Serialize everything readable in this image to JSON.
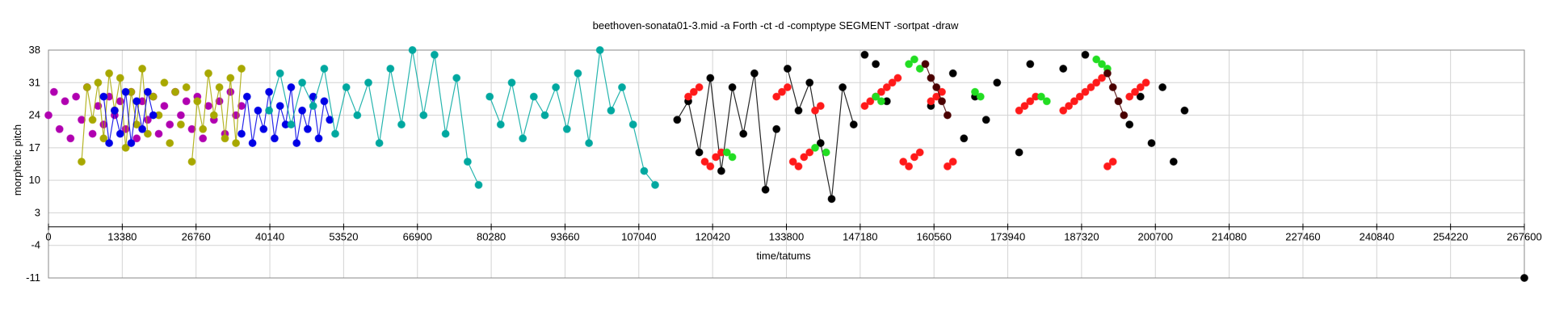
{
  "chart_data": {
    "type": "scatter",
    "title": "beethoven-sonata01-3.mid  -a Forth -ct -d -comptype SEGMENT -sortpat -draw",
    "xlabel": "time/tatums",
    "ylabel": "morphetic pitch",
    "xlim": [
      0,
      267600
    ],
    "ylim": [
      -11,
      38
    ],
    "x_ticks": [
      0,
      13380,
      26760,
      40140,
      53520,
      66900,
      80280,
      93660,
      107040,
      120420,
      133800,
      147180,
      160560,
      173940,
      187320,
      200700,
      214080,
      227460,
      240840,
      254220,
      267600
    ],
    "x_tick_labels": [
      "0",
      "13380",
      "26760",
      "40140",
      "53520",
      "66900",
      "80280",
      "93660",
      "107040",
      "120420",
      "133800",
      "147180",
      "160560",
      "173940",
      "187320",
      "200700",
      "214080",
      "227460",
      "240840",
      "254220",
      "267600"
    ],
    "y_ticks": [
      38,
      31,
      24,
      17,
      10,
      3,
      -4,
      -11
    ],
    "y_tick_labels": [
      "38",
      "31",
      "24",
      "17",
      "10",
      "3",
      "-4",
      "-11"
    ],
    "grid": true,
    "legend": "none",
    "colors": {
      "magenta": "#b000b0",
      "olive": "#a8a800",
      "blue": "#0000e6",
      "teal": "#00a8a0",
      "black": "#000000",
      "red": "#ff1a1a",
      "green": "#22dd22",
      "darkred": "#4a0000",
      "grid": "#d3d3d3"
    },
    "series": [
      {
        "color": "magenta",
        "x": [
          0,
          1000,
          2000,
          3000,
          4000,
          5000,
          6000,
          7000,
          8000,
          9000,
          10000,
          11000,
          12000,
          13000,
          14000,
          15000,
          16000,
          17000,
          18000,
          19000,
          20000,
          21000,
          22000,
          23000,
          24000,
          25000,
          26000,
          27000,
          28000,
          29000,
          30000,
          31000,
          32000,
          33000,
          34000,
          35000
        ],
        "y": [
          24,
          29,
          21,
          27,
          19,
          28,
          23,
          30,
          20,
          26,
          22,
          28,
          24,
          27,
          21,
          29,
          19,
          27,
          23,
          28,
          20,
          26,
          22,
          29,
          24,
          27,
          21,
          28,
          19,
          26,
          23,
          27,
          20,
          29,
          24,
          26
        ],
        "segments": [
          [
            0,
            14
          ],
          [
            19,
            32
          ]
        ]
      },
      {
        "color": "olive",
        "x": [
          6000,
          7000,
          8000,
          9000,
          10000,
          11000,
          12000,
          13000,
          14000,
          15000,
          16000,
          17000,
          18000,
          19000,
          20000,
          21000,
          22000,
          23000,
          24000,
          25000,
          26000,
          27000,
          28000,
          29000,
          30000,
          31000,
          32000,
          33000,
          34000,
          35000
        ],
        "y": [
          14,
          30,
          23,
          31,
          19,
          33,
          25,
          32,
          17,
          29,
          22,
          34,
          20,
          28,
          24,
          31,
          18,
          29,
          22,
          30,
          14,
          27,
          21,
          33,
          24,
          30,
          19,
          32,
          18,
          34
        ],
        "segments": [
          [
            6000,
            18000
          ],
          [
            26000,
            35000
          ]
        ]
      },
      {
        "color": "blue",
        "x": [
          10000,
          11000,
          12000,
          13000,
          14000,
          15000,
          16000,
          17000,
          18000,
          19000,
          35000,
          36000,
          37000,
          38000,
          39000,
          40000,
          41000,
          42000,
          43000,
          44000,
          45000,
          46000,
          47000,
          48000,
          49000,
          50000,
          51000
        ],
        "y": [
          28,
          18,
          25,
          20,
          29,
          18,
          27,
          21,
          29,
          24,
          20,
          28,
          18,
          25,
          21,
          29,
          19,
          26,
          22,
          30,
          18,
          25,
          21,
          28,
          19,
          27,
          23
        ],
        "segments": [
          [
            10000,
            19000
          ],
          [
            35000,
            51000
          ]
        ]
      },
      {
        "color": "teal",
        "x": [
          40000,
          42000,
          44000,
          46000,
          48000,
          50000,
          52000,
          54000,
          56000,
          58000,
          60000,
          62000,
          64000,
          66000,
          68000,
          70000,
          72000,
          74000,
          76000,
          78000,
          80000,
          82000,
          84000,
          86000,
          88000,
          90000,
          92000,
          94000,
          96000,
          98000,
          100000,
          102000,
          104000,
          106000,
          108000,
          110000
        ],
        "y": [
          25,
          33,
          22,
          31,
          26,
          34,
          20,
          30,
          24,
          31,
          18,
          34,
          22,
          38,
          24,
          37,
          20,
          32,
          14,
          9,
          28,
          22,
          31,
          19,
          28,
          24,
          30,
          21,
          33,
          18,
          38,
          25,
          30,
          22,
          12,
          9
        ],
        "segments": [
          [
            40000,
            78000
          ],
          [
            80000,
            110000
          ]
        ]
      },
      {
        "color": "black",
        "x": [
          114000,
          116000,
          118000,
          120000,
          122000,
          124000,
          126000,
          128000,
          130000,
          132000,
          134000,
          136000,
          138000,
          140000,
          142000,
          144000,
          146000,
          148000,
          150000,
          152000,
          160000,
          164000,
          166000,
          168000,
          170000,
          172000,
          176000,
          178000,
          184000,
          188000,
          196000,
          198000,
          200000,
          202000,
          204000,
          206000
        ],
        "y": [
          23,
          27,
          16,
          32,
          12,
          30,
          20,
          33,
          8,
          21,
          34,
          25,
          31,
          18,
          6,
          30,
          22,
          37,
          35,
          27,
          26,
          33,
          19,
          28,
          23,
          31,
          16,
          35,
          34,
          37,
          22,
          28,
          18,
          30,
          14,
          25
        ],
        "segments": [
          [
            114000,
            132000
          ],
          [
            134000,
            146000
          ]
        ]
      },
      {
        "color": "red",
        "x": [
          116000,
          117000,
          118000,
          119000,
          120000,
          121000,
          122000,
          132000,
          133000,
          134000,
          135000,
          136000,
          137000,
          138000,
          139000,
          140000,
          148000,
          149000,
          150000,
          151000,
          152000,
          153000,
          154000,
          155000,
          156000,
          157000,
          158000,
          160000,
          161000,
          162000,
          163000,
          164000,
          176000,
          177000,
          178000,
          179000,
          184000,
          185000,
          186000,
          187000,
          188000,
          189000,
          190000,
          191000,
          192000,
          193000,
          196000,
          197000,
          198000,
          199000
        ],
        "y": [
          28,
          29,
          30,
          14,
          13,
          15,
          16,
          28,
          29,
          30,
          14,
          13,
          15,
          16,
          25,
          26,
          26,
          27,
          28,
          29,
          30,
          31,
          32,
          14,
          13,
          15,
          16,
          27,
          28,
          29,
          13,
          14,
          25,
          26,
          27,
          28,
          25,
          26,
          27,
          28,
          29,
          30,
          31,
          32,
          13,
          14,
          28,
          29,
          30,
          31
        ],
        "segments": []
      },
      {
        "color": "green",
        "x": [
          123000,
          124000,
          139000,
          141000,
          150000,
          151000,
          156000,
          157000,
          158000,
          168000,
          169000,
          180000,
          181000,
          190000,
          191000,
          192000
        ],
        "y": [
          16,
          15,
          17,
          16,
          28,
          27,
          35,
          36,
          34,
          29,
          28,
          28,
          27,
          36,
          35,
          34
        ],
        "segments": []
      },
      {
        "color": "darkred",
        "x": [
          159000,
          160000,
          161000,
          162000,
          163000,
          192000,
          193000,
          194000,
          195000
        ],
        "y": [
          35,
          32,
          30,
          27,
          24,
          33,
          30,
          27,
          24
        ],
        "segments": [
          [
            159000,
            163000
          ],
          [
            192000,
            195000
          ]
        ]
      },
      {
        "color": "black",
        "x": [
          267600
        ],
        "y": [
          -11
        ],
        "segments": []
      }
    ]
  }
}
